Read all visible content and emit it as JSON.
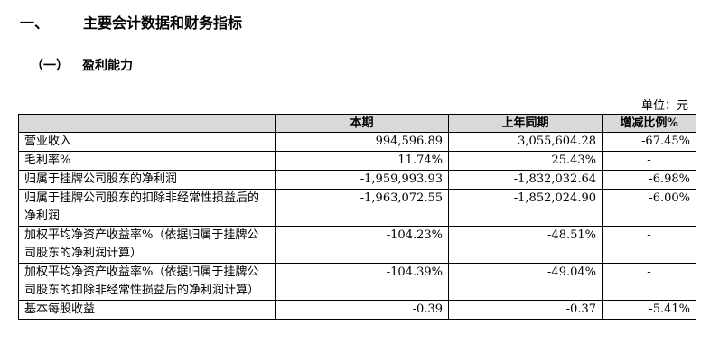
{
  "heading1": {
    "num": "一、",
    "text": "主要会计数据和财务指标"
  },
  "heading2": {
    "num": "（一）",
    "text": "盈利能力"
  },
  "unit": "单位：元",
  "table": {
    "headers": [
      "",
      "本期",
      "上年同期",
      "增减比例%"
    ],
    "rows": [
      {
        "label": "营业收入",
        "current": "994,596.89",
        "prior": "3,055,604.28",
        "change": "-67.45%"
      },
      {
        "label": "毛利率%",
        "current": "11.74%",
        "prior": "25.43%",
        "change": "-"
      },
      {
        "label": "归属于挂牌公司股东的净利润",
        "current": "-1,959,993.93",
        "prior": "-1,832,032.64",
        "change": "-6.98%"
      },
      {
        "label": "归属于挂牌公司股东的扣除非经常性损益后的净利润",
        "current": "-1,963,072.55",
        "prior": "-1,852,024.90",
        "change": "-6.00%"
      },
      {
        "label": "加权平均净资产收益率%（依据归属于挂牌公司股东的净利润计算）",
        "current": "-104.23%",
        "prior": "-48.51%",
        "change": "-"
      },
      {
        "label": "加权平均净资产收益率%（依据归属于挂牌公司股东的扣除非经常性损益后的净利润计算）",
        "current": "-104.39%",
        "prior": "-49.04%",
        "change": "-"
      },
      {
        "label": "基本每股收益",
        "current": "-0.39",
        "prior": "-0.37",
        "change": "-5.41%"
      }
    ]
  }
}
